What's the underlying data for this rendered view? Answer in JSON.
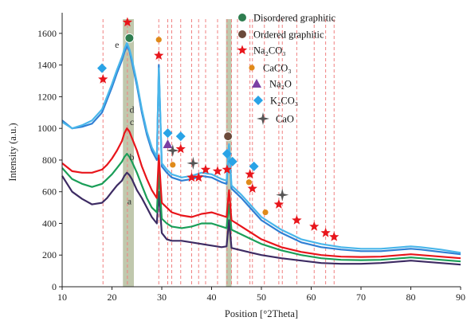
{
  "chart_data": {
    "type": "line",
    "xlabel": "Position [°2Theta]",
    "ylabel": "Intensity (a.u.)",
    "xlim": [
      10,
      90
    ],
    "ylim": [
      0,
      1700
    ],
    "xticks": [
      10,
      20,
      30,
      40,
      50,
      60,
      70,
      80,
      90
    ],
    "yticks": [
      0,
      200,
      400,
      600,
      800,
      1000,
      1200,
      1400,
      1600
    ],
    "grid": false,
    "legend_position": "top-right",
    "legend": [
      {
        "label": "Disordered graphitic",
        "marker": "circle",
        "color": "#2e7d4f"
      },
      {
        "label": "Ordered graphitic",
        "marker": "circle",
        "color": "#6b4a3a"
      },
      {
        "label": "Na₂CO₃",
        "marker": "star",
        "color": "#e8151b"
      },
      {
        "label": "CaCO₃",
        "marker": "circle",
        "color": "#e08a1a"
      },
      {
        "label": "Na₂O",
        "marker": "triangle",
        "color": "#7b3fa3"
      },
      {
        "label": "K₂CO₃",
        "marker": "diamond",
        "color": "#29a3e6"
      },
      {
        "label": "CaO",
        "marker": "cross",
        "color": "#555555"
      }
    ],
    "series": [
      {
        "label": "a",
        "color": "#3d2b63",
        "x": [
          10,
          12,
          14,
          16,
          18,
          19,
          20,
          21,
          22,
          22.5,
          23,
          23.5,
          24,
          25,
          26,
          27,
          28,
          29,
          29.4,
          30,
          31,
          32,
          34,
          36,
          38,
          40,
          42,
          43,
          43.5,
          44,
          46,
          48,
          50,
          54,
          58,
          62,
          66,
          70,
          74,
          78,
          80,
          82,
          86,
          90
        ],
        "y": [
          700,
          600,
          555,
          520,
          530,
          560,
          600,
          640,
          670,
          700,
          720,
          705,
          680,
          610,
          560,
          500,
          440,
          400,
          600,
          340,
          300,
          290,
          290,
          280,
          270,
          260,
          250,
          255,
          420,
          245,
          230,
          215,
          200,
          180,
          165,
          150,
          145,
          145,
          150,
          160,
          165,
          160,
          150,
          140
        ]
      },
      {
        "label": "b",
        "color": "#1a9e58",
        "x": [
          10,
          12,
          14,
          16,
          18,
          19,
          20,
          21,
          22,
          22.5,
          23,
          23.5,
          24,
          25,
          26,
          27,
          28,
          29,
          29.4,
          30,
          31,
          32,
          34,
          36,
          38,
          40,
          42,
          43,
          43.5,
          44,
          46,
          48,
          50,
          54,
          58,
          62,
          66,
          70,
          74,
          78,
          80,
          82,
          86,
          90
        ],
        "y": [
          750,
          680,
          650,
          630,
          650,
          680,
          710,
          750,
          790,
          820,
          840,
          820,
          790,
          720,
          640,
          560,
          500,
          470,
          730,
          430,
          400,
          380,
          370,
          380,
          400,
          400,
          380,
          370,
          520,
          360,
          330,
          300,
          270,
          230,
          200,
          180,
          170,
          168,
          170,
          180,
          185,
          180,
          170,
          160
        ]
      },
      {
        "label": "c",
        "color": "#e8151b",
        "x": [
          10,
          12,
          14,
          16,
          18,
          19,
          20,
          21,
          22,
          22.5,
          23,
          23.5,
          24,
          25,
          26,
          27,
          28,
          29,
          29.4,
          30,
          31,
          32,
          34,
          36,
          38,
          40,
          42,
          43,
          43.5,
          44,
          46,
          48,
          50,
          54,
          58,
          62,
          66,
          70,
          74,
          78,
          80,
          82,
          86,
          90
        ],
        "y": [
          780,
          730,
          720,
          720,
          740,
          770,
          810,
          860,
          920,
          970,
          1000,
          980,
          940,
          860,
          760,
          680,
          610,
          560,
          830,
          530,
          500,
          470,
          450,
          440,
          460,
          470,
          450,
          440,
          610,
          420,
          380,
          340,
          300,
          250,
          220,
          200,
          190,
          188,
          190,
          200,
          205,
          200,
          190,
          180
        ]
      },
      {
        "label": "d",
        "color": "#2f7fd4",
        "x": [
          10,
          12,
          14,
          16,
          18,
          19,
          20,
          21,
          22,
          22.5,
          23,
          23.5,
          24,
          25,
          26,
          27,
          28,
          29,
          29.4,
          30,
          31,
          32,
          34,
          36,
          38,
          40,
          42,
          43,
          43.5,
          44,
          46,
          48,
          50,
          54,
          58,
          62,
          66,
          70,
          74,
          78,
          80,
          82,
          86,
          90
        ],
        "y": [
          1050,
          1000,
          1010,
          1030,
          1100,
          1180,
          1260,
          1350,
          1430,
          1480,
          1520,
          1490,
          1420,
          1270,
          1100,
          960,
          860,
          800,
          1400,
          760,
          720,
          690,
          670,
          680,
          700,
          690,
          660,
          650,
          890,
          620,
          560,
          490,
          420,
          340,
          280,
          250,
          235,
          225,
          225,
          235,
          240,
          235,
          220,
          205
        ]
      },
      {
        "label": "e",
        "color": "#49b6ea",
        "x": [
          10,
          12,
          14,
          16,
          18,
          19,
          20,
          21,
          22,
          22.5,
          23,
          23.5,
          24,
          25,
          26,
          27,
          28,
          29,
          29.4,
          30,
          31,
          32,
          34,
          36,
          38,
          40,
          42,
          43,
          43.5,
          44,
          46,
          48,
          50,
          54,
          58,
          62,
          66,
          70,
          74,
          78,
          80,
          82,
          86,
          90
        ],
        "y": [
          1040,
          1000,
          1020,
          1050,
          1120,
          1200,
          1280,
          1370,
          1450,
          1500,
          1540,
          1500,
          1440,
          1290,
          1120,
          980,
          880,
          820,
          1380,
          780,
          740,
          710,
          690,
          700,
          720,
          710,
          680,
          670,
          900,
          640,
          580,
          510,
          440,
          360,
          300,
          270,
          250,
          240,
          240,
          250,
          255,
          250,
          235,
          215
        ]
      }
    ],
    "curve_labels": [
      {
        "text": "a",
        "x": 23.5,
        "y": 520
      },
      {
        "text": "b",
        "x": 24.0,
        "y": 800
      },
      {
        "text": "c",
        "x": 24.0,
        "y": 1020
      },
      {
        "text": "d",
        "x": 24.0,
        "y": 1100
      },
      {
        "text": "e",
        "x": 21.0,
        "y": 1510
      }
    ],
    "shaded_regions": [
      {
        "x_start": 22.2,
        "x_end": 24.4,
        "color": "#8c9a6a"
      },
      {
        "x_start": 42.9,
        "x_end": 44.0,
        "color": "#8c9a6a"
      }
    ],
    "reference_line_color": "#f08080",
    "reference_lines_x": [
      18.2,
      23.1,
      29.4,
      31.2,
      32.0,
      33.8,
      36.0,
      37.4,
      38.8,
      41.2,
      43.1,
      44.0,
      45.2,
      47.7,
      48.2,
      50.6,
      53.5,
      54.2,
      57.1,
      60.6,
      62.9,
      64.6
    ],
    "markers": [
      {
        "type": "star",
        "x": 18.2,
        "y": 1310
      },
      {
        "type": "diamond",
        "x": 18.0,
        "y": 1380
      },
      {
        "type": "star",
        "x": 23.1,
        "y": 1670
      },
      {
        "type": "disordered",
        "x": 23.5,
        "y": 1570
      },
      {
        "type": "caco3",
        "x": 29.4,
        "y": 1560
      },
      {
        "type": "star",
        "x": 29.4,
        "y": 1460
      },
      {
        "type": "diamond",
        "x": 31.2,
        "y": 970
      },
      {
        "type": "diamond",
        "x": 33.8,
        "y": 950
      },
      {
        "type": "triangle",
        "x": 31.2,
        "y": 900
      },
      {
        "type": "cross",
        "x": 32.2,
        "y": 860
      },
      {
        "type": "star",
        "x": 33.8,
        "y": 870
      },
      {
        "type": "caco3",
        "x": 32.2,
        "y": 770
      },
      {
        "type": "cross",
        "x": 36.3,
        "y": 780
      },
      {
        "type": "star",
        "x": 36.0,
        "y": 690
      },
      {
        "type": "star",
        "x": 37.4,
        "y": 690
      },
      {
        "type": "star",
        "x": 38.8,
        "y": 740
      },
      {
        "type": "star",
        "x": 41.2,
        "y": 730
      },
      {
        "type": "star",
        "x": 43.1,
        "y": 740
      },
      {
        "type": "ordered",
        "x": 43.3,
        "y": 950
      },
      {
        "type": "diamond",
        "x": 43.1,
        "y": 840
      },
      {
        "type": "diamond",
        "x": 44.2,
        "y": 790
      },
      {
        "type": "star",
        "x": 47.7,
        "y": 710
      },
      {
        "type": "diamond",
        "x": 48.5,
        "y": 760
      },
      {
        "type": "caco3",
        "x": 47.5,
        "y": 660
      },
      {
        "type": "star",
        "x": 48.2,
        "y": 620
      },
      {
        "type": "cross",
        "x": 54.2,
        "y": 580
      },
      {
        "type": "star",
        "x": 53.5,
        "y": 520
      },
      {
        "type": "caco3",
        "x": 50.8,
        "y": 470
      },
      {
        "type": "star",
        "x": 57.1,
        "y": 420
      },
      {
        "type": "star",
        "x": 60.6,
        "y": 380
      },
      {
        "type": "star",
        "x": 62.9,
        "y": 340
      },
      {
        "type": "star",
        "x": 64.6,
        "y": 315
      }
    ]
  }
}
